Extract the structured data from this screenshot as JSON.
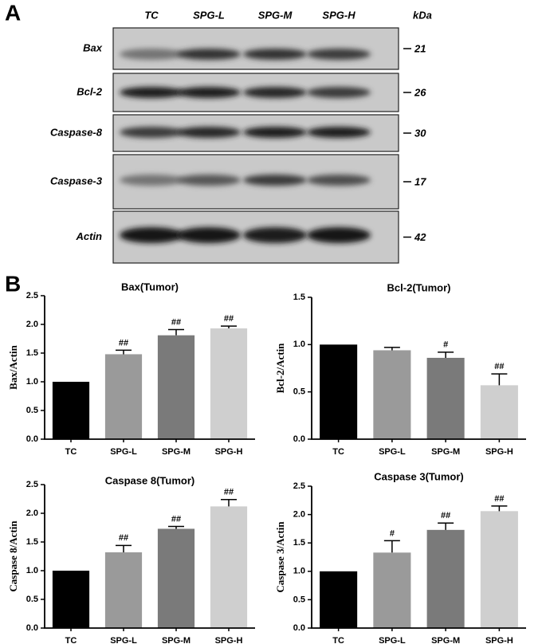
{
  "panel_labels": [
    "A",
    "B"
  ],
  "blot": {
    "lanes": [
      "TC",
      "SPG-L",
      "SPG-M",
      "SPG-H"
    ],
    "unit": "kDa",
    "rows": [
      {
        "protein": "Bax",
        "kda": 21
      },
      {
        "protein": "Bcl-2",
        "kda": 26
      },
      {
        "protein": "Caspase-8",
        "kda": 30
      },
      {
        "protein": "Caspase-3",
        "kda": 17
      },
      {
        "protein": "Actin",
        "kda": 42
      }
    ]
  },
  "chart_data": [
    {
      "type": "bar",
      "title": "Bax(Tumor)",
      "y_label": "Bax/Actin",
      "categories": [
        "TC",
        "SPG-L",
        "SPG-M",
        "SPG-H"
      ],
      "values": [
        1.0,
        1.48,
        1.81,
        1.93
      ],
      "errors": [
        null,
        0.07,
        0.1,
        0.04
      ],
      "annotations": [
        null,
        "##",
        "##",
        "##"
      ],
      "colors": [
        "#000000",
        "#9a9a9a",
        "#7a7a7a",
        "#cfcfcf"
      ],
      "ylim": [
        0,
        2.5
      ],
      "yticks": [
        {
          "value": 0,
          "label": "0.0"
        },
        {
          "value": 0.5,
          "label": "0.5"
        },
        {
          "value": 1,
          "label": "1.0"
        },
        {
          "value": 1.5,
          "label": "1.5"
        },
        {
          "value": 2,
          "label": "2.0"
        },
        {
          "value": 2.5,
          "label": "2.5"
        }
      ]
    },
    {
      "type": "bar",
      "title": "Bcl-2(Tumor)",
      "y_label": "Bcl-2/Actin",
      "categories": [
        "TC",
        "SPG-L",
        "SPG-M",
        "SPG-H"
      ],
      "values": [
        1.0,
        0.94,
        0.86,
        0.57
      ],
      "errors": [
        null,
        0.03,
        0.06,
        0.12
      ],
      "annotations": [
        null,
        null,
        "#",
        "##"
      ],
      "colors": [
        "#000000",
        "#9a9a9a",
        "#7a7a7a",
        "#cfcfcf"
      ],
      "ylim": [
        0,
        1.5
      ],
      "yticks": [
        {
          "value": 0,
          "label": "0.0"
        },
        {
          "value": 0.5,
          "label": "0.5"
        },
        {
          "value": 1,
          "label": "1.0"
        },
        {
          "value": 1.5,
          "label": "1.5"
        }
      ]
    },
    {
      "type": "bar",
      "title": "Caspase 8(Tumor)",
      "y_label": "Caspase 8/Actin",
      "categories": [
        "TC",
        "SPG-L",
        "SPG-M",
        "SPG-H"
      ],
      "values": [
        1.0,
        1.32,
        1.73,
        2.12
      ],
      "errors": [
        null,
        0.12,
        0.04,
        0.12
      ],
      "annotations": [
        null,
        "##",
        "##",
        "##"
      ],
      "colors": [
        "#000000",
        "#9a9a9a",
        "#7a7a7a",
        "#cfcfcf"
      ],
      "ylim": [
        0,
        2.5
      ],
      "yticks": [
        {
          "value": 0,
          "label": "0.0"
        },
        {
          "value": 0.5,
          "label": "0.5"
        },
        {
          "value": 1,
          "label": "1.0"
        },
        {
          "value": 1.5,
          "label": "1.5"
        },
        {
          "value": 2,
          "label": "2.0"
        },
        {
          "value": 2.5,
          "label": "2.5"
        }
      ]
    },
    {
      "type": "bar",
      "title": "Caspase 3(Tumor)",
      "y_label": "Caspase 3/Actin",
      "categories": [
        "TC",
        "SPG-L",
        "SPG-M",
        "SPG-H"
      ],
      "values": [
        1.0,
        1.33,
        1.73,
        2.06
      ],
      "errors": [
        null,
        0.21,
        0.12,
        0.09
      ],
      "annotations": [
        null,
        "#",
        "##",
        "##"
      ],
      "colors": [
        "#000000",
        "#9a9a9a",
        "#7a7a7a",
        "#cfcfcf"
      ],
      "ylim": [
        0,
        2.5
      ],
      "yticks": [
        {
          "value": 0,
          "label": "0.0"
        },
        {
          "value": 0.5,
          "label": "0.5"
        },
        {
          "value": 1,
          "label": "1.0"
        },
        {
          "value": 1.5,
          "label": "1.5"
        },
        {
          "value": 2,
          "label": "2.0"
        },
        {
          "value": 2.5,
          "label": "2.5"
        }
      ]
    }
  ]
}
